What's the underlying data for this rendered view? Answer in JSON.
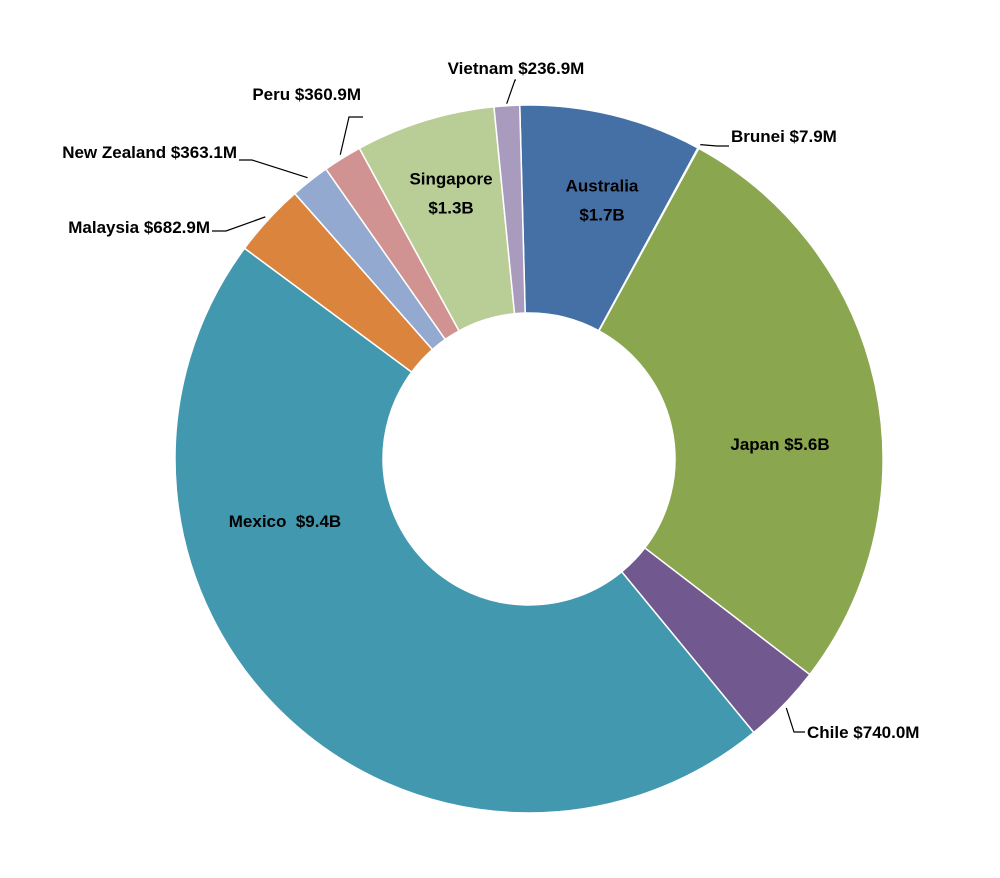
{
  "chart_data": {
    "type": "pie",
    "variant": "doughnut",
    "title": "",
    "slices": [
      {
        "name": "Australia",
        "value": 1.7,
        "label_lines": [
          "Australia",
          "$1.7B"
        ],
        "color": "#4470A6"
      },
      {
        "name": "Brunei",
        "value": 0.0079,
        "label_lines": [
          "Brunei $7.9M"
        ],
        "color": "#AA4644"
      },
      {
        "name": "Japan",
        "value": 5.6,
        "label_lines": [
          "Japan $5.6B"
        ],
        "color": "#8AA64E"
      },
      {
        "name": "Chile",
        "value": 0.74,
        "label_lines": [
          "Chile $740.0M"
        ],
        "color": "#71588F"
      },
      {
        "name": "Mexico",
        "value": 9.4,
        "label_lines": [
          "Mexico  $9.4B"
        ],
        "color": "#4198AF"
      },
      {
        "name": "Malaysia",
        "value": 0.6829,
        "label_lines": [
          "Malaysia $682.9M"
        ],
        "color": "#DB843D"
      },
      {
        "name": "New Zealand",
        "value": 0.3631,
        "label_lines": [
          "New Zealand $363.1M"
        ],
        "color": "#93A9D0"
      },
      {
        "name": "Peru",
        "value": 0.3609,
        "label_lines": [
          "Peru $360.9M"
        ],
        "color": "#D09392"
      },
      {
        "name": "Singapore",
        "value": 1.3,
        "label_lines": [
          "Singapore",
          "$1.3B"
        ],
        "color": "#B9CD96"
      },
      {
        "name": "Vietnam",
        "value": 0.2369,
        "label_lines": [
          "Vietnam $236.9M"
        ],
        "color": "#A99BBD"
      }
    ]
  }
}
